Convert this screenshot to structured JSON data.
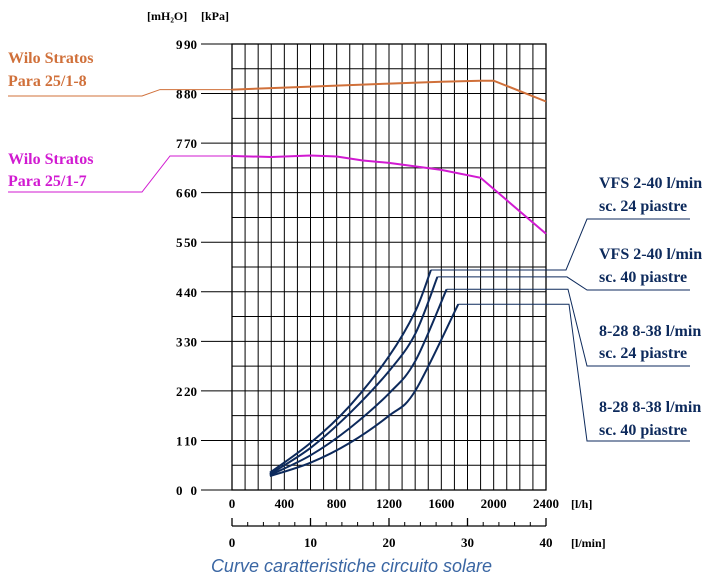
{
  "caption": "Curve caratteristiche circuito solare",
  "colors": {
    "grid": "#000000",
    "pump_8": "#d0703a",
    "pump_7": "#d11ad1",
    "system": "#0d2a5c"
  },
  "chart_data": {
    "type": "line",
    "title": "",
    "grid": true,
    "x_axis": {
      "unit_label": "[l/h]",
      "range": [
        0,
        2400
      ],
      "ticks": [
        0,
        400,
        800,
        1200,
        1600,
        2000,
        2400
      ]
    },
    "x2_axis": {
      "unit_label": "[l/min]",
      "range": [
        0,
        40
      ],
      "ticks": [
        0,
        10,
        20,
        30,
        40
      ]
    },
    "y_axis_m": {
      "unit_label": "[mH₂O]",
      "range": [
        0,
        9
      ],
      "ticks": [
        0,
        1,
        2,
        3,
        4,
        5,
        6,
        7,
        8,
        9
      ]
    },
    "y_axis_kpa": {
      "unit_label": "[kPa]",
      "range": [
        0,
        90
      ],
      "ticks": [
        0,
        10,
        20,
        30,
        40,
        50,
        60,
        70,
        80,
        90
      ]
    },
    "series": [
      {
        "name": "Wilo Stratos Para 25/1-8",
        "label_lines": [
          "Wilo Stratos",
          "Para 25/1-8"
        ],
        "kind": "pump",
        "color_key": "pump_8",
        "points": [
          [
            0,
            80.8
          ],
          [
            400,
            81.2
          ],
          [
            800,
            81.6
          ],
          [
            1200,
            82.0
          ],
          [
            1600,
            82.4
          ],
          [
            1900,
            82.6
          ],
          [
            2000,
            82.6
          ],
          [
            2400,
            78.4
          ]
        ]
      },
      {
        "name": "Wilo Stratos Para 25/1-7",
        "label_lines": [
          "Wilo Stratos",
          "Para 25/1-7"
        ],
        "kind": "pump",
        "color_key": "pump_7",
        "points": [
          [
            0,
            67.4
          ],
          [
            300,
            67.2
          ],
          [
            600,
            67.5
          ],
          [
            800,
            67.3
          ],
          [
            1000,
            66.5
          ],
          [
            1200,
            66.0
          ],
          [
            1600,
            64.6
          ],
          [
            1900,
            63.0
          ],
          [
            2400,
            51.7
          ]
        ]
      },
      {
        "name": "VFS 2-40 l/min sc. 24 piastre",
        "label_lines": [
          "VFS 2-40 l/min",
          "sc. 24 piastre"
        ],
        "kind": "system",
        "color_key": "system",
        "points": [
          [
            290,
            3.5
          ],
          [
            600,
            9.5
          ],
          [
            900,
            17.0
          ],
          [
            1200,
            27.0
          ],
          [
            1400,
            36.0
          ],
          [
            1520,
            44.4
          ]
        ]
      },
      {
        "name": "VFS 2-40 l/min sc. 40 piastre",
        "label_lines": [
          "VFS 2-40 l/min",
          "sc. 40 piastre"
        ],
        "kind": "system",
        "color_key": "system",
        "points": [
          [
            290,
            3.2
          ],
          [
            600,
            8.5
          ],
          [
            900,
            15.5
          ],
          [
            1200,
            24.0
          ],
          [
            1400,
            31.5
          ],
          [
            1570,
            43.0
          ]
        ]
      },
      {
        "name": "8-28 8-38 l/min sc. 24 piastre",
        "label_lines": [
          "8-28 8-38 l/min",
          "sc. 24 piastre"
        ],
        "kind": "system",
        "color_key": "system",
        "points": [
          [
            290,
            3.0
          ],
          [
            600,
            7.0
          ],
          [
            900,
            12.5
          ],
          [
            1200,
            19.5
          ],
          [
            1400,
            26.0
          ],
          [
            1640,
            40.5
          ]
        ]
      },
      {
        "name": "8-28 8-38 l/min sc. 40 piastre",
        "label_lines": [
          "8-28 8-38 l/min",
          "sc. 40 piastre"
        ],
        "kind": "system",
        "color_key": "system",
        "points": [
          [
            290,
            2.8
          ],
          [
            600,
            5.5
          ],
          [
            900,
            9.5
          ],
          [
            1200,
            15.0
          ],
          [
            1400,
            20.0
          ],
          [
            1730,
            37.5
          ]
        ]
      }
    ]
  }
}
